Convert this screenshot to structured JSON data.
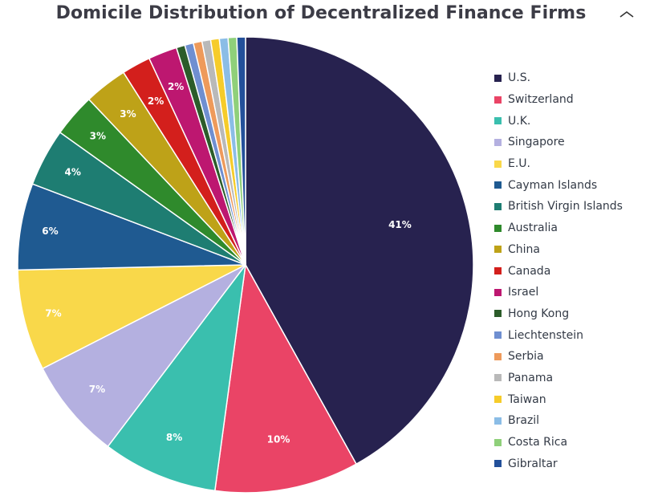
{
  "chart_data": {
    "type": "pie",
    "title": "Domicile Distribution of Decentralized Finance Firms",
    "slices": [
      {
        "label": "U.S.",
        "value": 41,
        "value_label": "41%",
        "color": "#27224f"
      },
      {
        "label": "Switzerland",
        "value": 10,
        "value_label": "10%",
        "color": "#ea4466"
      },
      {
        "label": "U.K.",
        "value": 8,
        "value_label": "8%",
        "color": "#3abfae"
      },
      {
        "label": "Singapore",
        "value": 7,
        "value_label": "7%",
        "color": "#b4b0e0"
      },
      {
        "label": "E.U.",
        "value": 7,
        "value_label": "7%",
        "color": "#f9d84a"
      },
      {
        "label": "Cayman Islands",
        "value": 6,
        "value_label": "6%",
        "color": "#1f5a91"
      },
      {
        "label": "British Virgin Islands",
        "value": 4,
        "value_label": "4%",
        "color": "#1e7d72"
      },
      {
        "label": "Australia",
        "value": 3,
        "value_label": "3%",
        "color": "#2f8a2c"
      },
      {
        "label": "China",
        "value": 3,
        "value_label": "3%",
        "color": "#bea218"
      },
      {
        "label": "Canada",
        "value": 2,
        "value_label": "2%",
        "color": "#d31f1c"
      },
      {
        "label": "Israel",
        "value": 2,
        "value_label": "2%",
        "color": "#bd1770"
      },
      {
        "label": "Hong Kong",
        "value": 0.6,
        "value_label": "",
        "color": "#2c5c2a"
      },
      {
        "label": "Liechtenstein",
        "value": 0.6,
        "value_label": "",
        "color": "#6f8fd1"
      },
      {
        "label": "Serbia",
        "value": 0.6,
        "value_label": "",
        "color": "#ee9a5b"
      },
      {
        "label": "Panama",
        "value": 0.6,
        "value_label": "",
        "color": "#b9b9b9"
      },
      {
        "label": "Taiwan",
        "value": 0.6,
        "value_label": "",
        "color": "#f6cc2a"
      },
      {
        "label": "Brazil",
        "value": 0.6,
        "value_label": "",
        "color": "#8bbde6"
      },
      {
        "label": "Costa Rica",
        "value": 0.6,
        "value_label": "",
        "color": "#8fd07a"
      },
      {
        "label": "Gibraltar",
        "value": 0.6,
        "value_label": "",
        "color": "#23509a"
      }
    ],
    "legend_placement": "right"
  },
  "ui": {
    "collapse_icon": "chevron-up-icon"
  }
}
